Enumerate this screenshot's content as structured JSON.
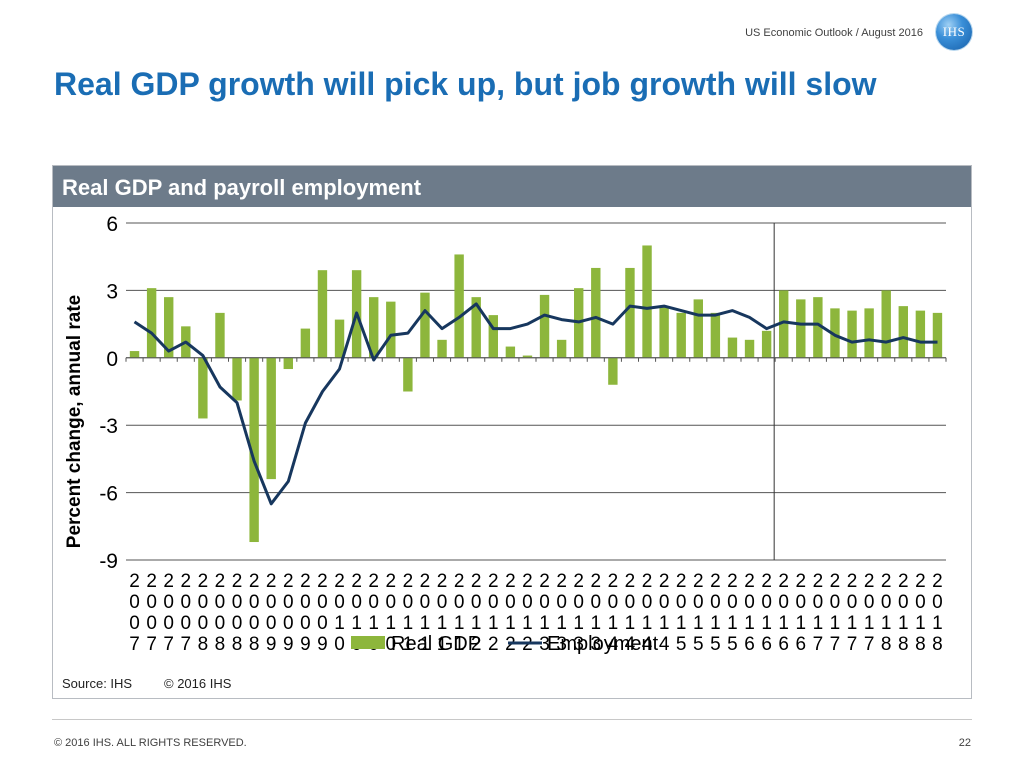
{
  "header": {
    "outlook": "US Economic Outlook / August 2016",
    "logo_text": "IHS"
  },
  "title": "Real GDP growth will pick up, but job growth will slow",
  "panel": {
    "heading": "Real GDP and payroll employment",
    "source": "Source: IHS",
    "copyright": "© 2016 IHS"
  },
  "footer": {
    "copyright": "© 2016 IHS. ALL RIGHTS RESERVED.",
    "page_number": "22"
  },
  "colors": {
    "gdp_bar": "#8db63c",
    "employment_line": "#17375e",
    "title_blue": "#1a6db4",
    "panel_header": "#6d7b8a"
  },
  "chart_data": {
    "type": "bar",
    "ylabel": "Percent change, annual rate",
    "ylim": [
      -9,
      6
    ],
    "yticks": [
      6,
      3,
      0,
      -3,
      -6,
      -9
    ],
    "grid": true,
    "legend_position": "bottom",
    "forecast_divider_after_category_index": 37,
    "categories": [
      "2007",
      "2007",
      "2007",
      "2007",
      "2008",
      "2008",
      "2008",
      "2008",
      "2009",
      "2009",
      "2009",
      "2009",
      "2010",
      "2010",
      "2010",
      "2010",
      "2011",
      "2011",
      "2011",
      "2011",
      "2012",
      "2012",
      "2012",
      "2012",
      "2013",
      "2013",
      "2013",
      "2013",
      "2014",
      "2014",
      "2014",
      "2014",
      "2015",
      "2015",
      "2015",
      "2015",
      "2016",
      "2016",
      "2016",
      "2016",
      "2017",
      "2017",
      "2017",
      "2017",
      "2018",
      "2018",
      "2018",
      "2018"
    ],
    "series": [
      {
        "name": "Real GDP",
        "type": "bar",
        "values": [
          0.3,
          3.1,
          2.7,
          1.4,
          -2.7,
          2.0,
          -1.9,
          -8.2,
          -5.4,
          -0.5,
          1.3,
          3.9,
          1.7,
          3.9,
          2.7,
          2.5,
          -1.5,
          2.9,
          0.8,
          4.6,
          2.7,
          1.9,
          0.5,
          0.1,
          2.8,
          0.8,
          3.1,
          4.0,
          -1.2,
          4.0,
          5.0,
          2.3,
          2.0,
          2.6,
          2.0,
          0.9,
          0.8,
          1.2,
          3.0,
          2.6,
          2.7,
          2.2,
          2.1,
          2.2,
          3.0,
          2.3,
          2.1,
          2.0
        ]
      },
      {
        "name": "Employment",
        "type": "line",
        "values": [
          1.6,
          1.1,
          0.3,
          0.7,
          0.1,
          -1.3,
          -2.0,
          -4.6,
          -6.5,
          -5.5,
          -2.9,
          -1.5,
          -0.5,
          2.0,
          -0.1,
          1.0,
          1.1,
          2.1,
          1.3,
          1.8,
          2.4,
          1.3,
          1.3,
          1.5,
          1.9,
          1.7,
          1.6,
          1.8,
          1.5,
          2.3,
          2.2,
          2.3,
          2.1,
          1.9,
          1.9,
          2.1,
          1.8,
          1.3,
          1.6,
          1.5,
          1.5,
          1.0,
          0.7,
          0.8,
          0.7,
          0.9,
          0.7,
          0.7
        ]
      }
    ]
  }
}
